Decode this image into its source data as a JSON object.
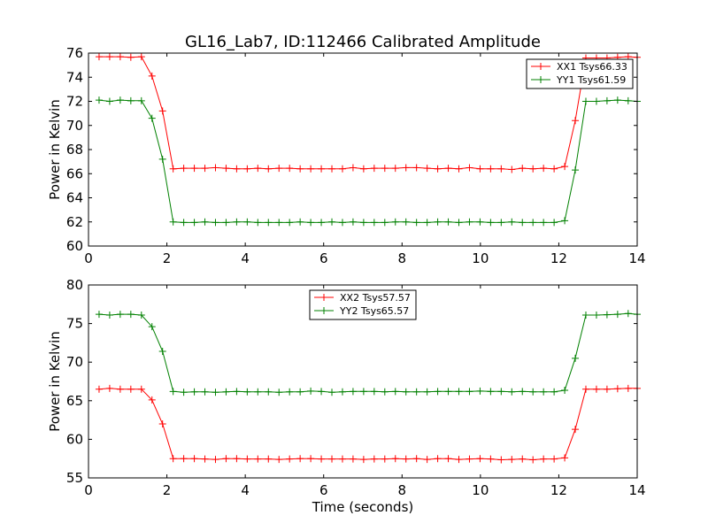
{
  "title": "GL16_Lab7, ID:112466 Calibrated Amplitude",
  "xlabel": "Time (seconds)",
  "chart_data": [
    {
      "type": "line",
      "title": "GL16_Lab7, ID:112466 Calibrated Amplitude",
      "xlabel": "",
      "ylabel": "Power in Kelvin",
      "xlim": [
        0,
        14
      ],
      "ylim": [
        60,
        76
      ],
      "xticks": [
        0,
        2,
        4,
        6,
        8,
        10,
        12,
        14
      ],
      "yticks": [
        60,
        62,
        64,
        66,
        68,
        70,
        72,
        74,
        76
      ],
      "grid": false,
      "legend": "top-right",
      "x": [
        0.27,
        0.54,
        0.81,
        1.08,
        1.35,
        1.62,
        1.89,
        2.16,
        2.43,
        2.7,
        2.97,
        3.24,
        3.51,
        3.78,
        4.05,
        4.32,
        4.59,
        4.86,
        5.13,
        5.4,
        5.67,
        5.94,
        6.21,
        6.48,
        6.75,
        7.02,
        7.29,
        7.56,
        7.83,
        8.1,
        8.37,
        8.64,
        8.91,
        9.18,
        9.45,
        9.72,
        9.99,
        10.26,
        10.53,
        10.8,
        11.07,
        11.34,
        11.61,
        11.88,
        12.15,
        12.42,
        12.69,
        12.96,
        13.23,
        13.5,
        13.77,
        14.0
      ],
      "series": [
        {
          "name": "XX1 Tsys66.33",
          "color": "#ff0000",
          "values": [
            75.7,
            75.7,
            75.7,
            75.65,
            75.7,
            74.1,
            71.2,
            66.4,
            66.45,
            66.45,
            66.45,
            66.5,
            66.45,
            66.4,
            66.4,
            66.45,
            66.4,
            66.45,
            66.45,
            66.4,
            66.4,
            66.4,
            66.4,
            66.4,
            66.5,
            66.4,
            66.45,
            66.45,
            66.45,
            66.5,
            66.5,
            66.45,
            66.4,
            66.45,
            66.4,
            66.5,
            66.4,
            66.4,
            66.4,
            66.35,
            66.45,
            66.4,
            66.45,
            66.4,
            66.6,
            70.4,
            75.6,
            75.6,
            75.6,
            75.65,
            75.7,
            75.65
          ]
        },
        {
          "name": "YY1 Tsys61.59",
          "color": "#008000",
          "values": [
            72.1,
            72.0,
            72.1,
            72.05,
            72.05,
            70.6,
            67.2,
            62.0,
            61.95,
            61.95,
            62.0,
            61.95,
            61.95,
            62.0,
            62.0,
            61.95,
            61.95,
            61.95,
            61.95,
            62.0,
            61.95,
            61.95,
            62.0,
            61.95,
            62.0,
            61.95,
            61.95,
            61.95,
            62.0,
            62.0,
            61.95,
            61.95,
            62.0,
            62.0,
            61.95,
            62.0,
            62.0,
            61.95,
            61.95,
            62.0,
            61.95,
            61.95,
            61.95,
            61.95,
            62.1,
            66.3,
            72.0,
            72.0,
            72.05,
            72.1,
            72.05,
            72.0
          ]
        }
      ]
    },
    {
      "type": "line",
      "title": "",
      "xlabel": "Time (seconds)",
      "ylabel": "Power in Kelvin",
      "xlim": [
        0,
        14
      ],
      "ylim": [
        55,
        80
      ],
      "xticks": [
        0,
        2,
        4,
        6,
        8,
        10,
        12,
        14
      ],
      "yticks": [
        55,
        60,
        65,
        70,
        75,
        80
      ],
      "grid": false,
      "legend": "top-center",
      "x": [
        0.27,
        0.54,
        0.81,
        1.08,
        1.35,
        1.62,
        1.89,
        2.16,
        2.43,
        2.7,
        2.97,
        3.24,
        3.51,
        3.78,
        4.05,
        4.32,
        4.59,
        4.86,
        5.13,
        5.4,
        5.67,
        5.94,
        6.21,
        6.48,
        6.75,
        7.02,
        7.29,
        7.56,
        7.83,
        8.1,
        8.37,
        8.64,
        8.91,
        9.18,
        9.45,
        9.72,
        9.99,
        10.26,
        10.53,
        10.8,
        11.07,
        11.34,
        11.61,
        11.88,
        12.15,
        12.42,
        12.69,
        12.96,
        13.23,
        13.5,
        13.77,
        14.0
      ],
      "series": [
        {
          "name": "XX2 Tsys57.57",
          "color": "#ff0000",
          "values": [
            66.5,
            66.6,
            66.5,
            66.5,
            66.5,
            65.1,
            62.0,
            57.5,
            57.5,
            57.5,
            57.45,
            57.4,
            57.5,
            57.5,
            57.45,
            57.45,
            57.45,
            57.4,
            57.45,
            57.5,
            57.5,
            57.45,
            57.45,
            57.45,
            57.45,
            57.4,
            57.45,
            57.45,
            57.5,
            57.45,
            57.5,
            57.4,
            57.5,
            57.5,
            57.4,
            57.45,
            57.5,
            57.45,
            57.35,
            57.4,
            57.45,
            57.35,
            57.45,
            57.45,
            57.6,
            61.3,
            66.5,
            66.5,
            66.5,
            66.55,
            66.6,
            66.6
          ]
        },
        {
          "name": "YY2 Tsys65.57",
          "color": "#008000",
          "values": [
            76.2,
            76.1,
            76.2,
            76.2,
            76.1,
            74.6,
            71.4,
            66.2,
            66.1,
            66.15,
            66.15,
            66.1,
            66.15,
            66.2,
            66.15,
            66.15,
            66.15,
            66.1,
            66.15,
            66.15,
            66.25,
            66.2,
            66.1,
            66.15,
            66.2,
            66.2,
            66.2,
            66.15,
            66.2,
            66.15,
            66.15,
            66.15,
            66.2,
            66.2,
            66.2,
            66.2,
            66.25,
            66.2,
            66.2,
            66.15,
            66.2,
            66.15,
            66.15,
            66.15,
            66.35,
            70.5,
            76.1,
            76.1,
            76.15,
            76.2,
            76.3,
            76.2
          ]
        }
      ]
    }
  ]
}
